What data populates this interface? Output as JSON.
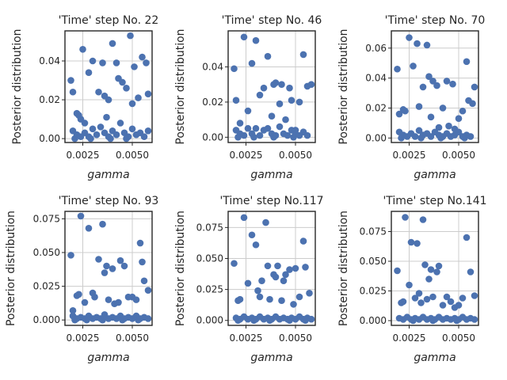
{
  "chart_data": [
    {
      "type": "scatter",
      "title": "'Time' step No. 22",
      "xlabel": "gamma",
      "ylabel": "Posterior distribution",
      "xlim": [
        0.0016,
        0.006
      ],
      "ylim": [
        -0.002,
        0.0555
      ],
      "xticks": [
        0.0025,
        0.005
      ],
      "xtick_labels": [
        "0.0025",
        "0.0050"
      ],
      "yticks": [
        0,
        0.02,
        0.04
      ],
      "ytick_labels": [
        "0.00",
        "0.02",
        "0.04"
      ],
      "grid": true,
      "color": "#4c72b0",
      "points": [
        [
          0.0019,
          0.03
        ],
        [
          0.002,
          0.024
        ],
        [
          0.0022,
          0.013
        ],
        [
          0.0023,
          0.012
        ],
        [
          0.0024,
          0.01
        ],
        [
          0.0025,
          0.046
        ],
        [
          0.0026,
          0.008
        ],
        [
          0.0028,
          0.034
        ],
        [
          0.003,
          0.04
        ],
        [
          0.0033,
          0.024
        ],
        [
          0.0035,
          0.039
        ],
        [
          0.0036,
          0.022
        ],
        [
          0.0037,
          0.011
        ],
        [
          0.0038,
          0.02
        ],
        [
          0.004,
          0.049
        ],
        [
          0.0042,
          0.039
        ],
        [
          0.0043,
          0.031
        ],
        [
          0.0045,
          0.029
        ],
        [
          0.0047,
          0.026
        ],
        [
          0.0049,
          0.053
        ],
        [
          0.005,
          0.018
        ],
        [
          0.0051,
          0.037
        ],
        [
          0.0053,
          0.021
        ],
        [
          0.0055,
          0.042
        ],
        [
          0.0057,
          0.039
        ],
        [
          0.0058,
          0.023
        ],
        [
          0.002,
          0.004
        ],
        [
          0.0022,
          0.002
        ],
        [
          0.0024,
          0.001
        ],
        [
          0.0026,
          0.003
        ],
        [
          0.0028,
          0.001
        ],
        [
          0.003,
          0.005
        ],
        [
          0.0032,
          0.002
        ],
        [
          0.0034,
          0.006
        ],
        [
          0.0036,
          0.003
        ],
        [
          0.0038,
          0.001
        ],
        [
          0.004,
          0.004
        ],
        [
          0.0042,
          0.002
        ],
        [
          0.0044,
          0.008
        ],
        [
          0.0046,
          0.003
        ],
        [
          0.0048,
          0.001
        ],
        [
          0.005,
          0.005
        ],
        [
          0.0052,
          0.002
        ],
        [
          0.0054,
          0.003
        ],
        [
          0.0056,
          0.001
        ],
        [
          0.0058,
          0.004
        ],
        [
          0.0021,
          0.0
        ],
        [
          0.0029,
          0.0
        ],
        [
          0.0039,
          0.0
        ],
        [
          0.0047,
          0.0
        ]
      ]
    },
    {
      "type": "scatter",
      "title": "'Time' step No. 46",
      "xlabel": "gamma",
      "ylabel": "Posterior distribution",
      "xlim": [
        0.0016,
        0.006
      ],
      "ylim": [
        -0.003,
        0.0605
      ],
      "xticks": [
        0.0025,
        0.005
      ],
      "xtick_labels": [
        "0.0025",
        "0.0050"
      ],
      "yticks": [
        0,
        0.02,
        0.04
      ],
      "ytick_labels": [
        "0.00",
        "0.02",
        "0.04"
      ],
      "grid": true,
      "color": "#4c72b0",
      "points": [
        [
          0.0019,
          0.039
        ],
        [
          0.002,
          0.021
        ],
        [
          0.0022,
          0.008
        ],
        [
          0.0024,
          0.057
        ],
        [
          0.0026,
          0.015
        ],
        [
          0.0028,
          0.042
        ],
        [
          0.003,
          0.055
        ],
        [
          0.0032,
          0.024
        ],
        [
          0.0034,
          0.028
        ],
        [
          0.0036,
          0.046
        ],
        [
          0.0038,
          0.012
        ],
        [
          0.0039,
          0.03
        ],
        [
          0.004,
          0.031
        ],
        [
          0.0042,
          0.019
        ],
        [
          0.0043,
          0.03
        ],
        [
          0.0045,
          0.01
        ],
        [
          0.0047,
          0.028
        ],
        [
          0.0048,
          0.021
        ],
        [
          0.005,
          0.004
        ],
        [
          0.0052,
          0.02
        ],
        [
          0.0054,
          0.047
        ],
        [
          0.0056,
          0.029
        ],
        [
          0.0058,
          0.03
        ],
        [
          0.002,
          0.004
        ],
        [
          0.0022,
          0.002
        ],
        [
          0.0024,
          0.001
        ],
        [
          0.0026,
          0.005
        ],
        [
          0.0028,
          0.002
        ],
        [
          0.003,
          0.005
        ],
        [
          0.0032,
          0.001
        ],
        [
          0.0034,
          0.004
        ],
        [
          0.0036,
          0.005
        ],
        [
          0.0038,
          0.002
        ],
        [
          0.004,
          0.001
        ],
        [
          0.0042,
          0.006
        ],
        [
          0.0044,
          0.002
        ],
        [
          0.0046,
          0.001
        ],
        [
          0.0048,
          0.004
        ],
        [
          0.005,
          0.002
        ],
        [
          0.0052,
          0.001
        ],
        [
          0.0054,
          0.003
        ],
        [
          0.0056,
          0.001
        ],
        [
          0.0021,
          0.0
        ],
        [
          0.0029,
          0.0
        ],
        [
          0.0039,
          0.0
        ],
        [
          0.0049,
          0.0
        ]
      ]
    },
    {
      "type": "scatter",
      "title": "'Time' step No. 70",
      "xlabel": "gamma",
      "ylabel": "Posterior distribution",
      "xlim": [
        0.0016,
        0.006
      ],
      "ylim": [
        -0.003,
        0.0715
      ],
      "xticks": [
        0.0025,
        0.005
      ],
      "xtick_labels": [
        "0.0025",
        "0.0050"
      ],
      "yticks": [
        0,
        0.02,
        0.04,
        0.06
      ],
      "ytick_labels": [
        "0.00",
        "0.02",
        "0.04",
        "0.06"
      ],
      "grid": true,
      "color": "#4c72b0",
      "points": [
        [
          0.0019,
          0.046
        ],
        [
          0.002,
          0.016
        ],
        [
          0.0022,
          0.019
        ],
        [
          0.0023,
          0.018
        ],
        [
          0.0025,
          0.067
        ],
        [
          0.0027,
          0.048
        ],
        [
          0.0029,
          0.063
        ],
        [
          0.003,
          0.021
        ],
        [
          0.0032,
          0.034
        ],
        [
          0.0034,
          0.062
        ],
        [
          0.0035,
          0.041
        ],
        [
          0.0036,
          0.014
        ],
        [
          0.0037,
          0.038
        ],
        [
          0.0039,
          0.035
        ],
        [
          0.004,
          0.007
        ],
        [
          0.0042,
          0.02
        ],
        [
          0.0044,
          0.038
        ],
        [
          0.0045,
          0.008
        ],
        [
          0.0047,
          0.036
        ],
        [
          0.0048,
          0.006
        ],
        [
          0.005,
          0.013
        ],
        [
          0.0052,
          0.018
        ],
        [
          0.0054,
          0.051
        ],
        [
          0.0055,
          0.025
        ],
        [
          0.0057,
          0.023
        ],
        [
          0.0058,
          0.034
        ],
        [
          0.002,
          0.004
        ],
        [
          0.0022,
          0.002
        ],
        [
          0.0024,
          0.001
        ],
        [
          0.0026,
          0.003
        ],
        [
          0.0028,
          0.001
        ],
        [
          0.003,
          0.005
        ],
        [
          0.0032,
          0.002
        ],
        [
          0.0034,
          0.003
        ],
        [
          0.0036,
          0.001
        ],
        [
          0.0038,
          0.004
        ],
        [
          0.004,
          0.002
        ],
        [
          0.0042,
          0.001
        ],
        [
          0.0044,
          0.003
        ],
        [
          0.0046,
          0.001
        ],
        [
          0.0048,
          0.002
        ],
        [
          0.005,
          0.004
        ],
        [
          0.0052,
          0.001
        ],
        [
          0.0054,
          0.002
        ],
        [
          0.0056,
          0.001
        ],
        [
          0.0021,
          0.0
        ],
        [
          0.0031,
          0.0
        ],
        [
          0.0041,
          0.0
        ],
        [
          0.0053,
          0.0
        ]
      ]
    },
    {
      "type": "scatter",
      "title": "'Time' step No. 93",
      "xlabel": "gamma",
      "ylabel": "Posterior distribution",
      "xlim": [
        0.0016,
        0.006
      ],
      "ylim": [
        -0.004,
        0.0805
      ],
      "xticks": [
        0.0025,
        0.005
      ],
      "xtick_labels": [
        "0.0025",
        "0.0050"
      ],
      "yticks": [
        0,
        0.025,
        0.05,
        0.075
      ],
      "ytick_labels": [
        "0.000",
        "0.025",
        "0.050",
        "0.075"
      ],
      "grid": true,
      "color": "#4c72b0",
      "points": [
        [
          0.0019,
          0.048
        ],
        [
          0.002,
          0.007
        ],
        [
          0.0022,
          0.018
        ],
        [
          0.0023,
          0.019
        ],
        [
          0.0024,
          0.077
        ],
        [
          0.0026,
          0.013
        ],
        [
          0.0028,
          0.068
        ],
        [
          0.003,
          0.02
        ],
        [
          0.0031,
          0.017
        ],
        [
          0.0033,
          0.045
        ],
        [
          0.0035,
          0.071
        ],
        [
          0.0036,
          0.035
        ],
        [
          0.0037,
          0.04
        ],
        [
          0.0038,
          0.015
        ],
        [
          0.004,
          0.038
        ],
        [
          0.0041,
          0.012
        ],
        [
          0.0043,
          0.013
        ],
        [
          0.0044,
          0.044
        ],
        [
          0.0046,
          0.04
        ],
        [
          0.0048,
          0.017
        ],
        [
          0.005,
          0.017
        ],
        [
          0.0052,
          0.015
        ],
        [
          0.0054,
          0.057
        ],
        [
          0.0055,
          0.043
        ],
        [
          0.0056,
          0.029
        ],
        [
          0.0058,
          0.022
        ],
        [
          0.002,
          0.003
        ],
        [
          0.0022,
          0.001
        ],
        [
          0.0024,
          0.002
        ],
        [
          0.0026,
          0.001
        ],
        [
          0.0028,
          0.003
        ],
        [
          0.003,
          0.001
        ],
        [
          0.0032,
          0.002
        ],
        [
          0.0034,
          0.001
        ],
        [
          0.0036,
          0.004
        ],
        [
          0.0038,
          0.001
        ],
        [
          0.004,
          0.002
        ],
        [
          0.0042,
          0.001
        ],
        [
          0.0044,
          0.003
        ],
        [
          0.0046,
          0.001
        ],
        [
          0.0048,
          0.002
        ],
        [
          0.005,
          0.001
        ],
        [
          0.0052,
          0.003
        ],
        [
          0.0054,
          0.001
        ],
        [
          0.0056,
          0.002
        ],
        [
          0.0058,
          0.001
        ],
        [
          0.0021,
          0.0
        ],
        [
          0.0027,
          0.0
        ],
        [
          0.0035,
          0.0
        ],
        [
          0.0045,
          0.0
        ],
        [
          0.0053,
          0.0
        ]
      ]
    },
    {
      "type": "scatter",
      "title": "'Time' step No.117",
      "xlabel": "gamma",
      "ylabel": "Posterior distribution",
      "xlim": [
        0.0016,
        0.006
      ],
      "ylim": [
        -0.004,
        0.088
      ],
      "xticks": [
        0.0025,
        0.005
      ],
      "xtick_labels": [
        "0.0025",
        "0.0050"
      ],
      "yticks": [
        0,
        0.025,
        0.05,
        0.075
      ],
      "ytick_labels": [
        "0.000",
        "0.025",
        "0.050",
        "0.075"
      ],
      "grid": true,
      "color": "#4c72b0",
      "points": [
        [
          0.0019,
          0.046
        ],
        [
          0.0021,
          0.016
        ],
        [
          0.0022,
          0.017
        ],
        [
          0.0024,
          0.083
        ],
        [
          0.0026,
          0.03
        ],
        [
          0.0028,
          0.069
        ],
        [
          0.003,
          0.061
        ],
        [
          0.0031,
          0.024
        ],
        [
          0.0032,
          0.019
        ],
        [
          0.0033,
          0.032
        ],
        [
          0.0035,
          0.079
        ],
        [
          0.0036,
          0.044
        ],
        [
          0.0037,
          0.017
        ],
        [
          0.0039,
          0.037
        ],
        [
          0.004,
          0.035
        ],
        [
          0.0041,
          0.044
        ],
        [
          0.0043,
          0.016
        ],
        [
          0.0044,
          0.032
        ],
        [
          0.0045,
          0.037
        ],
        [
          0.0047,
          0.041
        ],
        [
          0.0049,
          0.013
        ],
        [
          0.005,
          0.042
        ],
        [
          0.0052,
          0.019
        ],
        [
          0.0054,
          0.064
        ],
        [
          0.0055,
          0.043
        ],
        [
          0.0057,
          0.022
        ],
        [
          0.002,
          0.002
        ],
        [
          0.0022,
          0.001
        ],
        [
          0.0024,
          0.003
        ],
        [
          0.0026,
          0.001
        ],
        [
          0.0028,
          0.002
        ],
        [
          0.003,
          0.001
        ],
        [
          0.0032,
          0.003
        ],
        [
          0.0034,
          0.001
        ],
        [
          0.0036,
          0.002
        ],
        [
          0.0038,
          0.001
        ],
        [
          0.004,
          0.003
        ],
        [
          0.0042,
          0.001
        ],
        [
          0.0044,
          0.002
        ],
        [
          0.0046,
          0.001
        ],
        [
          0.0048,
          0.002
        ],
        [
          0.005,
          0.001
        ],
        [
          0.0052,
          0.003
        ],
        [
          0.0054,
          0.001
        ],
        [
          0.0056,
          0.002
        ],
        [
          0.0058,
          0.001
        ],
        [
          0.0021,
          0.0
        ],
        [
          0.0029,
          0.0
        ],
        [
          0.0037,
          0.0
        ],
        [
          0.0047,
          0.0
        ],
        [
          0.0055,
          0.0
        ]
      ]
    },
    {
      "type": "scatter",
      "title": "'Time' step No.141",
      "xlabel": "gamma",
      "ylabel": "Posterior distribution",
      "xlim": [
        0.0016,
        0.006
      ],
      "ylim": [
        -0.004,
        0.092
      ],
      "xticks": [
        0.0025,
        0.005
      ],
      "xtick_labels": [
        "0.0025",
        "0.0050"
      ],
      "yticks": [
        0,
        0.025,
        0.05,
        0.075
      ],
      "ytick_labels": [
        "0.000",
        "0.025",
        "0.050",
        "0.075"
      ],
      "grid": true,
      "color": "#4c72b0",
      "points": [
        [
          0.0019,
          0.042
        ],
        [
          0.0021,
          0.015
        ],
        [
          0.0022,
          0.016
        ],
        [
          0.0023,
          0.087
        ],
        [
          0.0025,
          0.03
        ],
        [
          0.0026,
          0.066
        ],
        [
          0.0028,
          0.019
        ],
        [
          0.0029,
          0.065
        ],
        [
          0.003,
          0.023
        ],
        [
          0.0031,
          0.015
        ],
        [
          0.0032,
          0.085
        ],
        [
          0.0033,
          0.047
        ],
        [
          0.0034,
          0.018
        ],
        [
          0.0035,
          0.035
        ],
        [
          0.0036,
          0.043
        ],
        [
          0.0037,
          0.02
        ],
        [
          0.0039,
          0.041
        ],
        [
          0.004,
          0.046
        ],
        [
          0.0042,
          0.013
        ],
        [
          0.0044,
          0.02
        ],
        [
          0.0046,
          0.016
        ],
        [
          0.0048,
          0.011
        ],
        [
          0.005,
          0.013
        ],
        [
          0.0052,
          0.019
        ],
        [
          0.0054,
          0.07
        ],
        [
          0.0056,
          0.041
        ],
        [
          0.0058,
          0.021
        ],
        [
          0.002,
          0.002
        ],
        [
          0.0022,
          0.001
        ],
        [
          0.0024,
          0.003
        ],
        [
          0.0026,
          0.001
        ],
        [
          0.0028,
          0.002
        ],
        [
          0.003,
          0.001
        ],
        [
          0.0032,
          0.003
        ],
        [
          0.0034,
          0.001
        ],
        [
          0.0036,
          0.002
        ],
        [
          0.0038,
          0.001
        ],
        [
          0.004,
          0.003
        ],
        [
          0.0042,
          0.001
        ],
        [
          0.0044,
          0.002
        ],
        [
          0.0046,
          0.001
        ],
        [
          0.0048,
          0.002
        ],
        [
          0.005,
          0.001
        ],
        [
          0.0052,
          0.003
        ],
        [
          0.0054,
          0.001
        ],
        [
          0.0056,
          0.002
        ],
        [
          0.0058,
          0.001
        ],
        [
          0.0027,
          0.0
        ],
        [
          0.0037,
          0.0
        ],
        [
          0.0049,
          0.0
        ]
      ]
    }
  ]
}
